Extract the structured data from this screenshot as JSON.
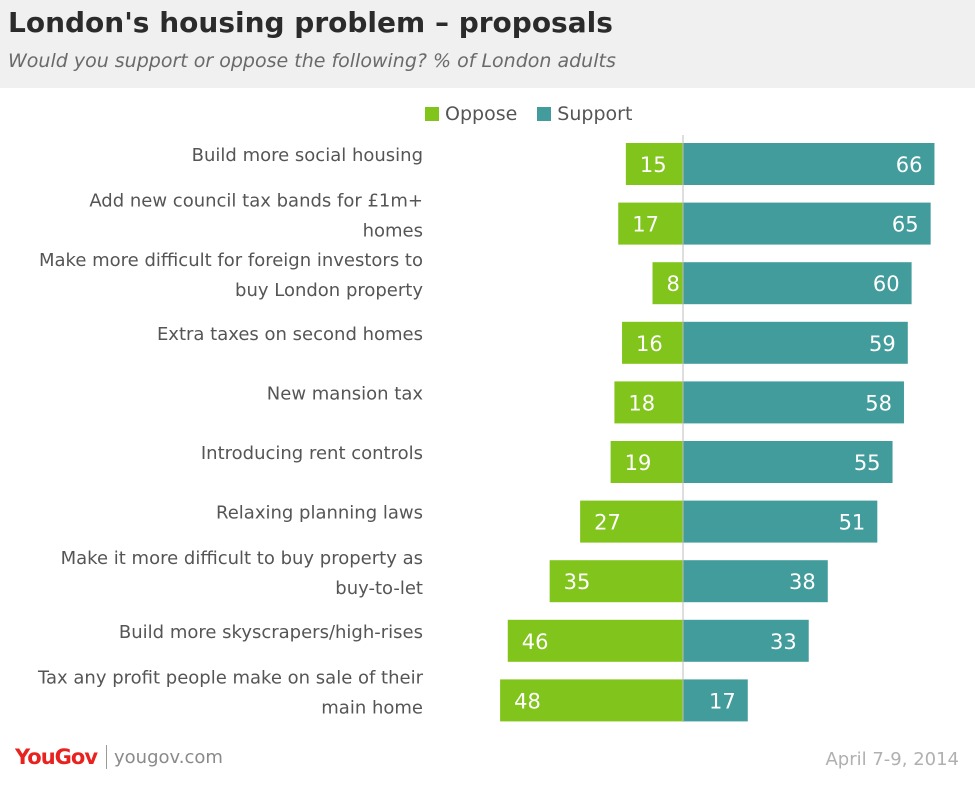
{
  "header": {
    "title": "London's housing problem – proposals",
    "subtitle": "Would you support or oppose the following? % of London adults"
  },
  "colors": {
    "oppose": "#80c41c",
    "support": "#439c9c",
    "header_bg": "#f0f0f0"
  },
  "legend": {
    "oppose_label": "Oppose",
    "support_label": "Support"
  },
  "chart_data": {
    "type": "bar",
    "orientation": "horizontal-diverging",
    "title": "London's housing problem – proposals",
    "subtitle": "Would you support or oppose the following? % of London adults",
    "categories": [
      "Build more social housing",
      "Add new council tax bands for  £1m+ homes",
      "Make more difficult for foreign investors to buy London property",
      "Extra taxes on second homes",
      "New mansion tax",
      "Introducing rent controls",
      "Relaxing planning laws",
      "Make it more difficult to buy property as buy-to-let",
      "Build more skyscrapers/high-rises",
      "Tax any profit people make on sale of their main home"
    ],
    "category_lines": [
      [
        "Build more social housing"
      ],
      [
        "Add new council tax bands for  £1m+",
        "homes"
      ],
      [
        "Make more difficult for foreign investors to",
        "buy London property"
      ],
      [
        "Extra taxes on second homes"
      ],
      [
        "New mansion tax"
      ],
      [
        "Introducing rent controls"
      ],
      [
        "Relaxing planning laws"
      ],
      [
        "Make it more difficult to buy property as",
        "buy-to-let"
      ],
      [
        "Build more skyscrapers/high-rises"
      ],
      [
        "Tax any profit people make on sale of their",
        "main home"
      ]
    ],
    "series": [
      {
        "name": "Oppose",
        "values": [
          15,
          17,
          8,
          16,
          18,
          19,
          27,
          35,
          46,
          48
        ]
      },
      {
        "name": "Support",
        "values": [
          66,
          65,
          60,
          59,
          58,
          55,
          51,
          38,
          33,
          17
        ]
      }
    ],
    "unit": "%",
    "legend_position": "top",
    "grid": false
  },
  "footer": {
    "brand": "YouGov",
    "site": "yougov.com",
    "date": "April 7-9, 2014"
  }
}
